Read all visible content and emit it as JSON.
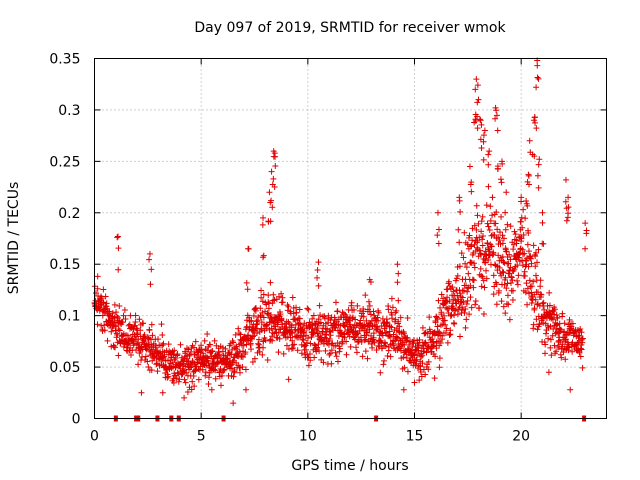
{
  "chart_data": {
    "type": "scatter",
    "title": "Day 097 of 2019, SRMTID for receiver wmok",
    "xlabel": "GPS time / hours",
    "ylabel": "SRMTID / TECUs",
    "xlim": [
      0,
      24
    ],
    "ylim": [
      0,
      0.35
    ],
    "x_ticks": [
      0,
      5,
      10,
      15,
      20
    ],
    "x_tick_labels": [
      "0",
      "5",
      "10",
      "15",
      "20"
    ],
    "y_ticks": [
      0,
      0.05,
      0.1,
      0.15,
      0.2,
      0.25,
      0.3,
      0.35
    ],
    "y_tick_labels": [
      "0",
      "0.05",
      "0.1",
      "0.15",
      "0.2",
      "0.25",
      "0.3",
      "0.35"
    ],
    "grid": true,
    "marker": "+",
    "color": "#e00000",
    "envelope": {
      "hours": [
        0,
        0.5,
        1,
        1.5,
        2,
        2.5,
        3,
        3.5,
        4,
        4.5,
        5,
        5.5,
        6,
        6.5,
        7,
        7.5,
        8,
        8.5,
        9,
        9.5,
        10,
        10.5,
        11,
        11.5,
        12,
        12.5,
        13,
        13.5,
        14,
        14.5,
        15,
        15.5,
        16,
        16.5,
        17,
        17.5,
        18,
        18.5,
        19,
        19.5,
        20,
        20.5,
        21,
        21.5,
        22,
        22.5,
        23
      ],
      "center": [
        0.12,
        0.1,
        0.09,
        0.08,
        0.075,
        0.07,
        0.065,
        0.055,
        0.05,
        0.052,
        0.058,
        0.06,
        0.055,
        0.06,
        0.07,
        0.085,
        0.095,
        0.1,
        0.09,
        0.085,
        0.08,
        0.085,
        0.08,
        0.085,
        0.09,
        0.085,
        0.09,
        0.08,
        0.085,
        0.07,
        0.06,
        0.065,
        0.08,
        0.1,
        0.12,
        0.14,
        0.16,
        0.17,
        0.15,
        0.14,
        0.17,
        0.14,
        0.1,
        0.09,
        0.08,
        0.075,
        0.07
      ],
      "spread": [
        0.02,
        0.02,
        0.025,
        0.025,
        0.02,
        0.02,
        0.02,
        0.02,
        0.02,
        0.02,
        0.02,
        0.02,
        0.02,
        0.02,
        0.025,
        0.03,
        0.035,
        0.03,
        0.025,
        0.025,
        0.025,
        0.025,
        0.025,
        0.025,
        0.025,
        0.025,
        0.025,
        0.025,
        0.025,
        0.025,
        0.02,
        0.025,
        0.03,
        0.035,
        0.04,
        0.045,
        0.05,
        0.05,
        0.045,
        0.04,
        0.05,
        0.05,
        0.03,
        0.025,
        0.025,
        0.02,
        0.02
      ]
    },
    "spikes": [
      {
        "x": 1.1,
        "y": 0.177
      },
      {
        "x": 2.6,
        "y": 0.16
      },
      {
        "x": 7.2,
        "y": 0.165
      },
      {
        "x": 7.9,
        "y": 0.195
      },
      {
        "x": 8.4,
        "y": 0.26
      },
      {
        "x": 8.45,
        "y": 0.258
      },
      {
        "x": 8.3,
        "y": 0.24
      },
      {
        "x": 8.2,
        "y": 0.22
      },
      {
        "x": 10.5,
        "y": 0.152
      },
      {
        "x": 12.9,
        "y": 0.135
      },
      {
        "x": 14.2,
        "y": 0.15
      },
      {
        "x": 16.1,
        "y": 0.2
      },
      {
        "x": 17.1,
        "y": 0.215
      },
      {
        "x": 17.6,
        "y": 0.245
      },
      {
        "x": 17.9,
        "y": 0.33
      },
      {
        "x": 17.85,
        "y": 0.32
      },
      {
        "x": 18.0,
        "y": 0.31
      },
      {
        "x": 18.1,
        "y": 0.29
      },
      {
        "x": 18.3,
        "y": 0.28
      },
      {
        "x": 18.5,
        "y": 0.26
      },
      {
        "x": 18.8,
        "y": 0.302
      },
      {
        "x": 18.9,
        "y": 0.28
      },
      {
        "x": 19.1,
        "y": 0.25
      },
      {
        "x": 19.3,
        "y": 0.22
      },
      {
        "x": 20.0,
        "y": 0.215
      },
      {
        "x": 20.3,
        "y": 0.23
      },
      {
        "x": 20.4,
        "y": 0.27
      },
      {
        "x": 20.6,
        "y": 0.29
      },
      {
        "x": 20.7,
        "y": 0.322
      },
      {
        "x": 20.75,
        "y": 0.348
      },
      {
        "x": 20.85,
        "y": 0.252
      },
      {
        "x": 21.0,
        "y": 0.2
      },
      {
        "x": 22.1,
        "y": 0.232
      },
      {
        "x": 22.2,
        "y": 0.215
      },
      {
        "x": 23.0,
        "y": 0.19
      }
    ],
    "lows": [
      {
        "x": 2.2,
        "y": 0.025
      },
      {
        "x": 3.2,
        "y": 0.025
      },
      {
        "x": 4.2,
        "y": 0.02
      },
      {
        "x": 5.5,
        "y": 0.028
      },
      {
        "x": 6.5,
        "y": 0.015
      },
      {
        "x": 7.1,
        "y": 0.028
      },
      {
        "x": 9.1,
        "y": 0.038
      },
      {
        "x": 14.5,
        "y": 0.028
      },
      {
        "x": 15.0,
        "y": 0.035
      },
      {
        "x": 22.3,
        "y": 0.028
      },
      {
        "x": 21.3,
        "y": 0.045
      }
    ],
    "zero_markers_x": [
      1.0,
      1.95,
      2.05,
      2.95,
      3.6,
      3.95,
      6.05,
      13.2,
      22.95
    ],
    "axis_label_color": "#000000"
  }
}
